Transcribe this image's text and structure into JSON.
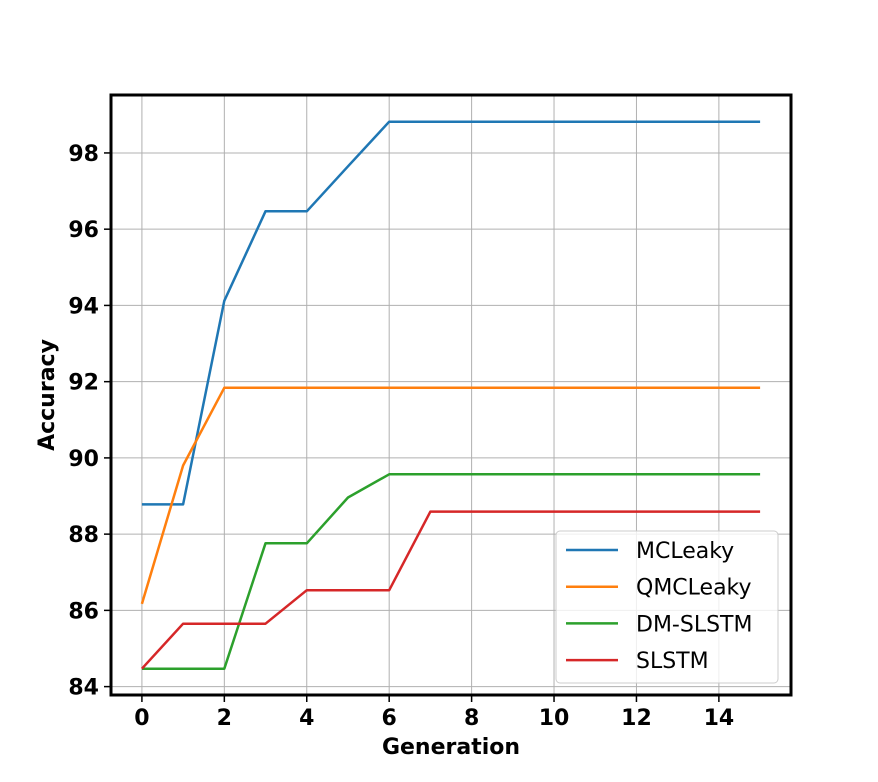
{
  "chart_data": {
    "type": "line",
    "title": "",
    "xlabel": "Generation",
    "ylabel": "Accuracy",
    "xlim": [
      -0.75,
      15.75
    ],
    "ylim": [
      83.78,
      99.52
    ],
    "xticks": [
      0,
      2,
      4,
      6,
      8,
      10,
      12,
      14
    ],
    "yticks": [
      84,
      86,
      88,
      90,
      92,
      94,
      96,
      98
    ],
    "grid": true,
    "legend_position": "lower-right",
    "x": [
      0,
      1,
      2,
      3,
      4,
      5,
      6,
      7,
      8,
      9,
      10,
      11,
      12,
      13,
      14,
      15
    ],
    "series": [
      {
        "name": "MCLeaky",
        "color": "#1f77b4",
        "values": [
          88.78,
          88.78,
          94.12,
          96.47,
          96.47,
          97.65,
          98.82,
          98.82,
          98.82,
          98.82,
          98.82,
          98.82,
          98.82,
          98.82,
          98.82,
          98.82
        ]
      },
      {
        "name": "QMCLeaky",
        "color": "#ff7f0e",
        "values": [
          86.17,
          89.8,
          91.84,
          91.84,
          91.84,
          91.84,
          91.84,
          91.84,
          91.84,
          91.84,
          91.84,
          91.84,
          91.84,
          91.84,
          91.84,
          91.84
        ]
      },
      {
        "name": "DM-SLSTM",
        "color": "#2ca02c",
        "values": [
          84.47,
          84.47,
          84.47,
          87.76,
          87.76,
          88.96,
          89.57,
          89.57,
          89.57,
          89.57,
          89.57,
          89.57,
          89.57,
          89.57,
          89.57,
          89.57
        ]
      },
      {
        "name": "SLSTM",
        "color": "#d62728",
        "values": [
          84.47,
          85.65,
          85.65,
          85.65,
          86.53,
          86.53,
          86.53,
          88.59,
          88.59,
          88.59,
          88.59,
          88.59,
          88.59,
          88.59,
          88.59,
          88.59
        ]
      }
    ]
  }
}
